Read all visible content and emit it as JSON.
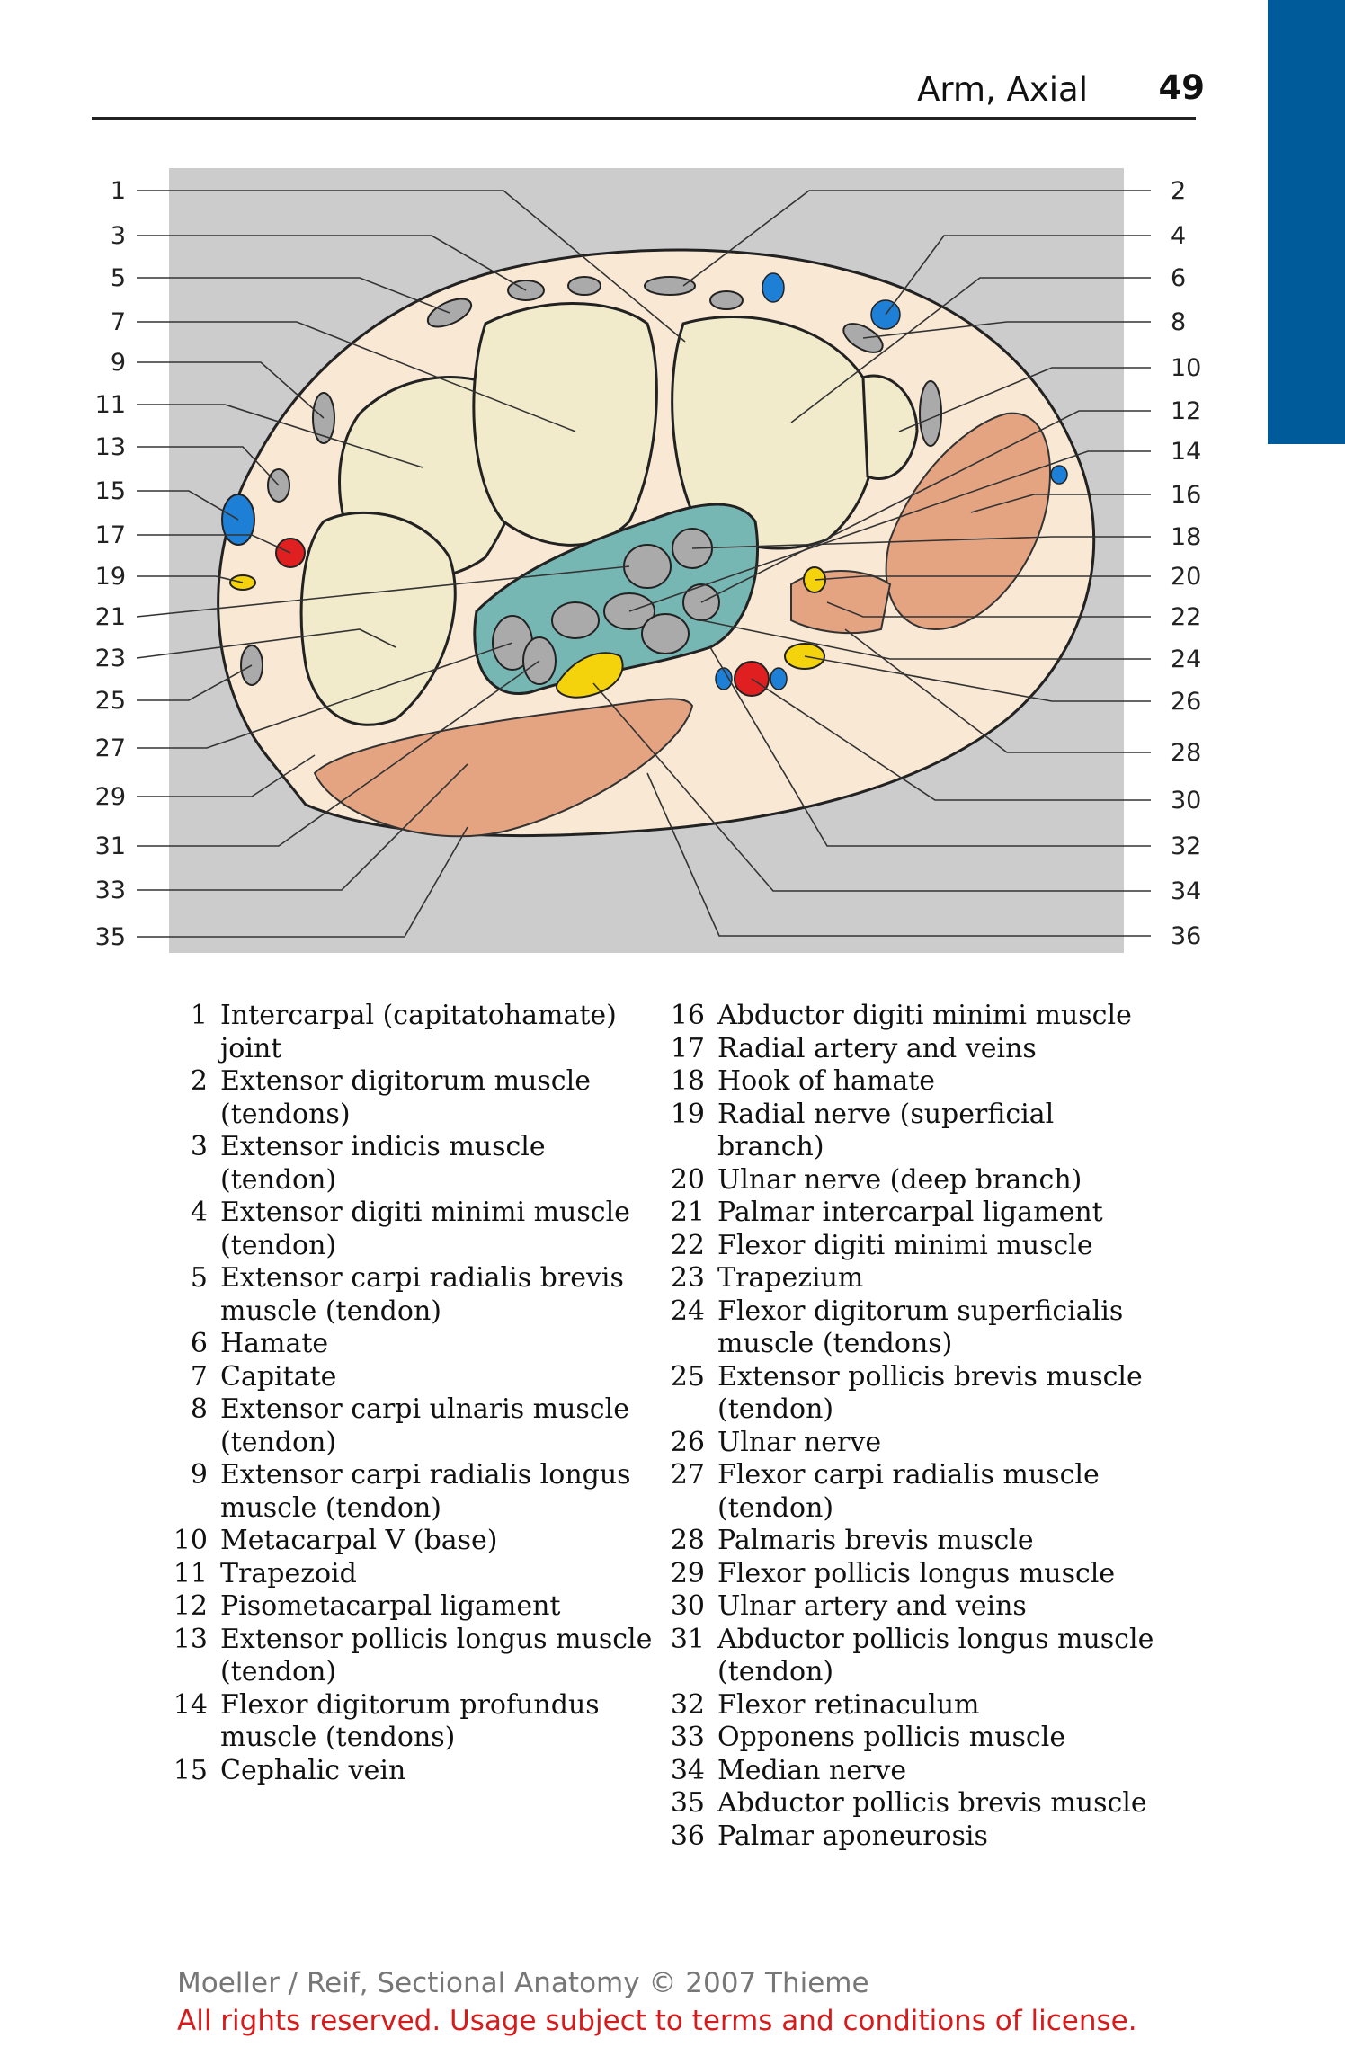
{
  "header": {
    "section_title": "Arm, Axial",
    "page_number": "49"
  },
  "colors": {
    "tab": "#005b9a",
    "muscle": "#e4a381",
    "bone": "#f1ebcc",
    "tendon_sheath": "#76b7b4",
    "vein": "#1e7fd6",
    "artery": "#e02020",
    "nerve": "#f4d20c",
    "background": "#cccccc",
    "skin": "#f8e8d4"
  },
  "figure": {
    "left_callouts": [
      "1",
      "3",
      "5",
      "7",
      "9",
      "11",
      "13",
      "15",
      "17",
      "19",
      "21",
      "23",
      "25",
      "27",
      "29",
      "31",
      "33",
      "35"
    ],
    "right_callouts": [
      "2",
      "4",
      "6",
      "8",
      "10",
      "12",
      "14",
      "16",
      "18",
      "20",
      "22",
      "24",
      "26",
      "28",
      "30",
      "32",
      "34",
      "36"
    ]
  },
  "legend": {
    "col1": [
      {
        "num": "1",
        "text": "Intercarpal (capitatohamate) joint"
      },
      {
        "num": "2",
        "text": "Extensor digitorum muscle (tendons)"
      },
      {
        "num": "3",
        "text": "Extensor indicis muscle (tendon)"
      },
      {
        "num": "4",
        "text": "Extensor digiti minimi muscle (tendon)"
      },
      {
        "num": "5",
        "text": "Extensor carpi radialis brevis muscle (tendon)"
      },
      {
        "num": "6",
        "text": "Hamate"
      },
      {
        "num": "7",
        "text": "Capitate"
      },
      {
        "num": "8",
        "text": "Extensor carpi ulnaris muscle (tendon)"
      },
      {
        "num": "9",
        "text": "Extensor carpi radialis longus muscle (tendon)"
      },
      {
        "num": "10",
        "text": "Metacarpal V (base)"
      },
      {
        "num": "11",
        "text": "Trapezoid"
      },
      {
        "num": "12",
        "text": "Pisometacarpal ligament"
      },
      {
        "num": "13",
        "text": "Extensor pollicis longus muscle (tendon)"
      },
      {
        "num": "14",
        "text": "Flexor digitorum profundus muscle (tendons)"
      },
      {
        "num": "15",
        "text": "Cephalic vein"
      }
    ],
    "col2": [
      {
        "num": "16",
        "text": "Abductor digiti minimi muscle"
      },
      {
        "num": "17",
        "text": "Radial artery and veins"
      },
      {
        "num": "18",
        "text": "Hook of hamate"
      },
      {
        "num": "19",
        "text": "Radial nerve (superficial branch)"
      },
      {
        "num": "20",
        "text": "Ulnar nerve (deep branch)"
      },
      {
        "num": "21",
        "text": "Palmar intercarpal ligament"
      },
      {
        "num": "22",
        "text": "Flexor digiti minimi muscle"
      },
      {
        "num": "23",
        "text": "Trapezium"
      },
      {
        "num": "24",
        "text": "Flexor digitorum superficialis muscle (tendons)"
      },
      {
        "num": "25",
        "text": "Extensor pollicis brevis muscle (tendon)"
      },
      {
        "num": "26",
        "text": "Ulnar nerve"
      },
      {
        "num": "27",
        "text": "Flexor carpi radialis muscle (tendon)"
      },
      {
        "num": "28",
        "text": "Palmaris brevis muscle"
      },
      {
        "num": "29",
        "text": "Flexor pollicis longus muscle"
      },
      {
        "num": "30",
        "text": "Ulnar artery and veins"
      },
      {
        "num": "31",
        "text": "Abductor pollicis longus muscle (tendon)"
      },
      {
        "num": "32",
        "text": "Flexor retinaculum"
      },
      {
        "num": "33",
        "text": "Opponens pollicis muscle"
      },
      {
        "num": "34",
        "text": "Median nerve"
      },
      {
        "num": "35",
        "text": "Abductor pollicis brevis muscle"
      },
      {
        "num": "36",
        "text": "Palmar aponeurosis"
      }
    ]
  },
  "footer": {
    "source": "Moeller / Reif, Sectional Anatomy © 2007 Thieme",
    "rights": "All rights reserved. Usage subject to terms and conditions of license."
  }
}
